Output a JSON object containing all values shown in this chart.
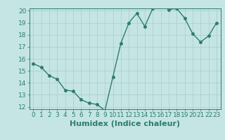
{
  "x": [
    0,
    1,
    2,
    3,
    4,
    5,
    6,
    7,
    8,
    9,
    10,
    11,
    12,
    13,
    14,
    15,
    16,
    17,
    18,
    19,
    20,
    21,
    22,
    23
  ],
  "y": [
    15.6,
    15.3,
    14.6,
    14.3,
    13.4,
    13.3,
    12.6,
    12.3,
    12.2,
    11.7,
    14.5,
    17.3,
    19.0,
    19.8,
    18.7,
    20.2,
    20.5,
    20.1,
    20.2,
    19.4,
    18.1,
    17.4,
    17.9,
    19.0
  ],
  "line_color": "#2e7d6e",
  "marker_color": "#2e7d6e",
  "bg_color": "#c5e5e5",
  "grid_color": "#a8cccc",
  "xlabel": "Humidex (Indice chaleur)",
  "ylim": [
    12,
    20
  ],
  "xlim": [
    -0.5,
    23.5
  ],
  "yticks": [
    12,
    13,
    14,
    15,
    16,
    17,
    18,
    19,
    20
  ],
  "xticks": [
    0,
    1,
    2,
    3,
    4,
    5,
    6,
    7,
    8,
    9,
    10,
    11,
    12,
    13,
    14,
    15,
    16,
    17,
    18,
    19,
    20,
    21,
    22,
    23
  ],
  "tick_label_fontsize": 6.5,
  "xlabel_fontsize": 8,
  "line_width": 1.0,
  "marker_size": 2.5
}
